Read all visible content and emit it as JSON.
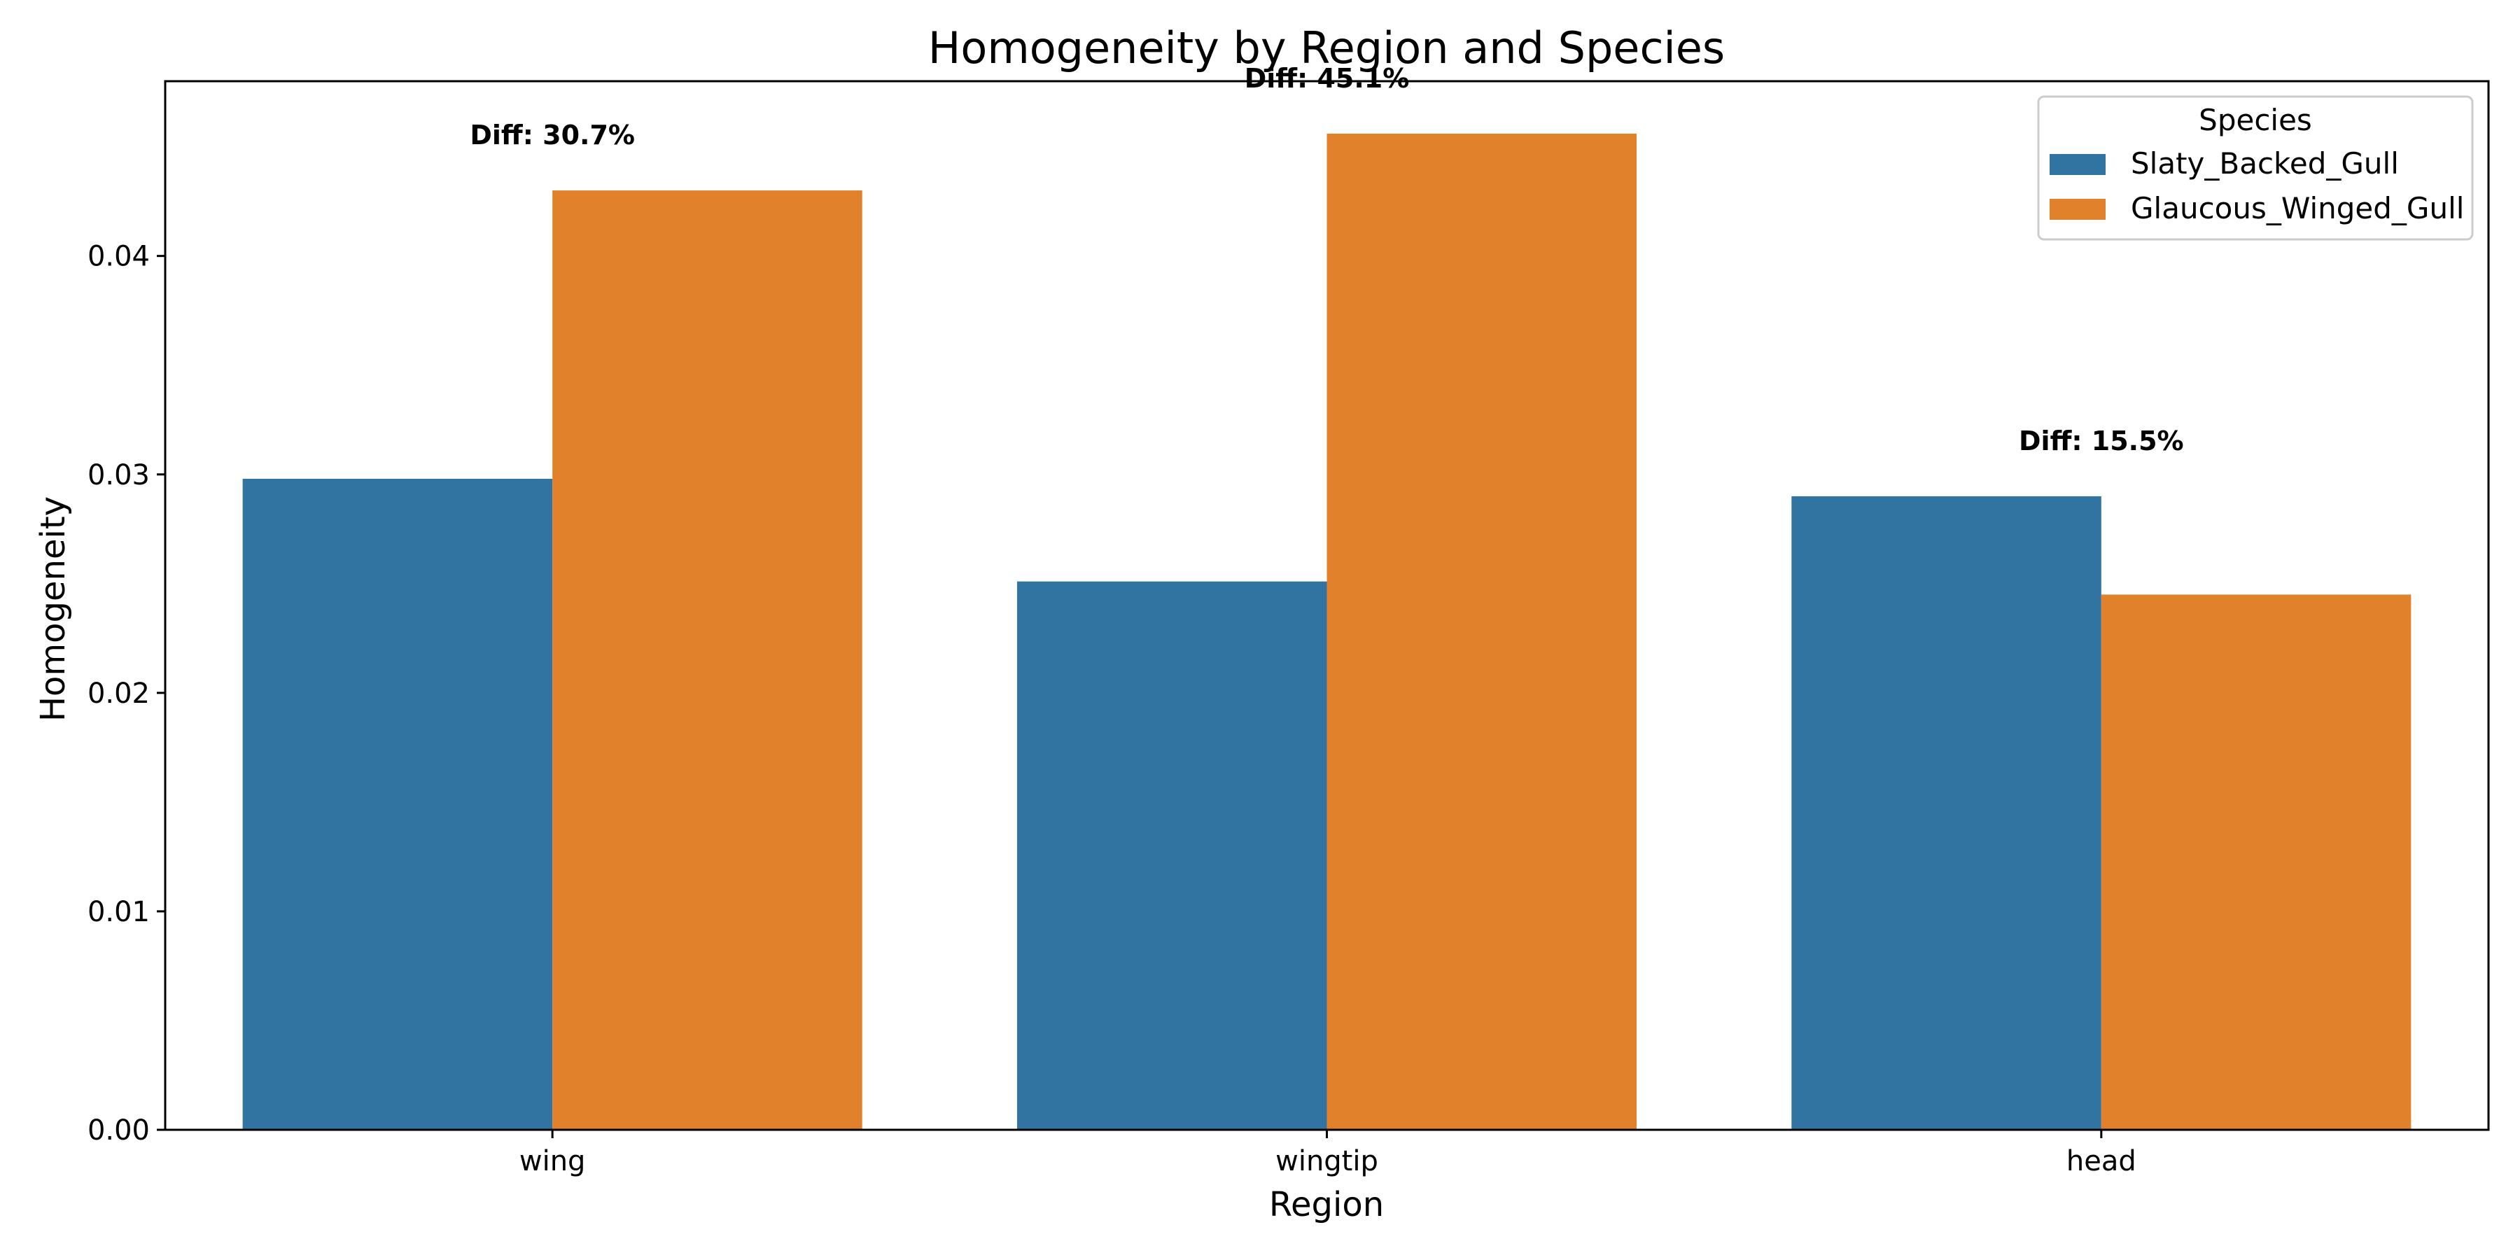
{
  "chart_data": {
    "type": "bar",
    "title": "Homogeneity by Region and Species",
    "xlabel": "Region",
    "ylabel": "Homogeneity",
    "categories": [
      "wing",
      "wingtip",
      "head"
    ],
    "series": [
      {
        "name": "Slaty_Backed_Gull",
        "color": "#3274a1",
        "values": [
          0.0298,
          0.0251,
          0.029
        ]
      },
      {
        "name": "Glaucous_Winged_Gull",
        "color": "#e1812c",
        "values": [
          0.043,
          0.0456,
          0.0245
        ]
      }
    ],
    "ylim": [
      0,
      0.048
    ],
    "yticks": [
      "0.00",
      "0.01",
      "0.02",
      "0.03",
      "0.04"
    ],
    "annotations": [
      "Diff: 30.7%",
      "Diff: 45.1%",
      "Diff: 15.5%"
    ],
    "legend": {
      "title": "Species",
      "placement": "top-right"
    },
    "grid": false
  }
}
